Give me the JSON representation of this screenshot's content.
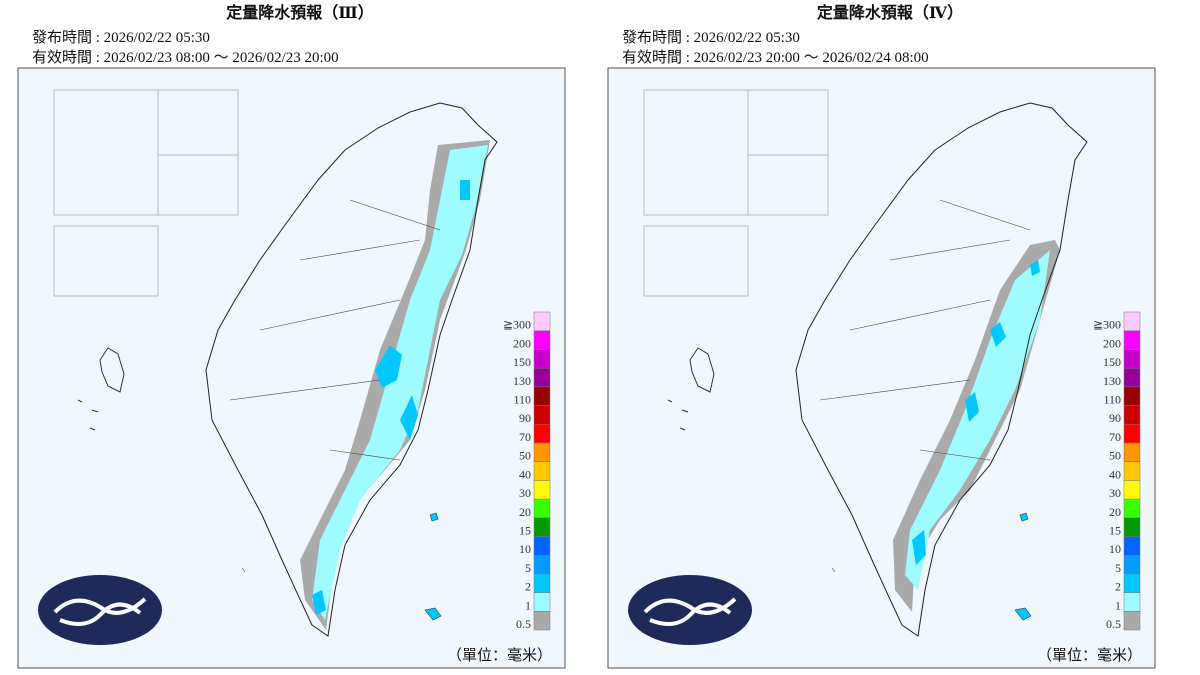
{
  "panels": [
    {
      "title": "定量降水預報（Ⅲ）",
      "issued": "發布時間 : 2026/02/22 05:30",
      "valid": "有效時間 : 2026/02/23 08:00 ～ 2026/02/23 20:00"
    },
    {
      "title": "定量降水預報（Ⅳ）",
      "issued": "發布時間 : 2026/02/22 05:30",
      "valid": "有效時間 : 2026/02/23 20:00 ～ 2026/02/24 08:00"
    }
  ],
  "legend": {
    "levels": [
      "0.5",
      "1",
      "2",
      "5",
      "10",
      "15",
      "20",
      "30",
      "40",
      "50",
      "70",
      "90",
      "110",
      "130",
      "150",
      "200",
      "≧300"
    ],
    "colors": [
      "#aaaaaa",
      "#9efcff",
      "#03c8ff",
      "#059bff",
      "#0363ff",
      "#059902",
      "#39ff03",
      "#fffb03",
      "#ffc800",
      "#ff9500",
      "#ff0000",
      "#cc0000",
      "#990000",
      "#960099",
      "#c900cc",
      "#fb00ff",
      "#fdc9ff"
    ],
    "unit": "（單位：毫米）"
  }
}
